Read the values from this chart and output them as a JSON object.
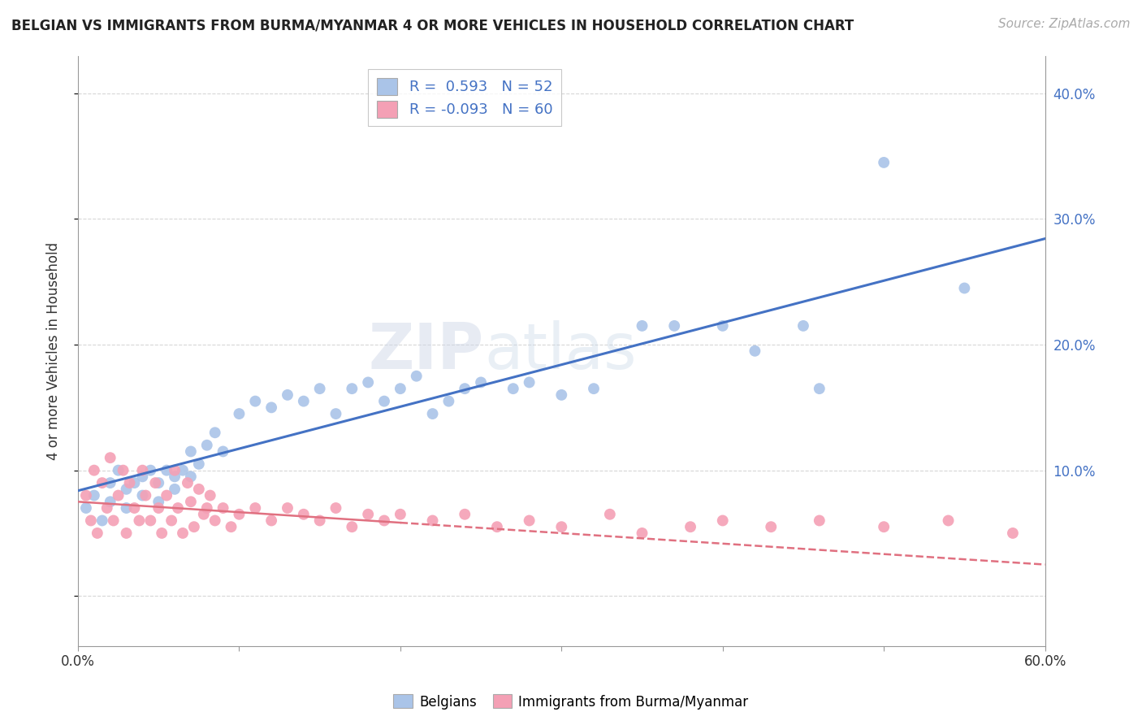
{
  "title": "BELGIAN VS IMMIGRANTS FROM BURMA/MYANMAR 4 OR MORE VEHICLES IN HOUSEHOLD CORRELATION CHART",
  "source": "Source: ZipAtlas.com",
  "ylabel": "4 or more Vehicles in Household",
  "xlim": [
    0.0,
    0.6
  ],
  "ylim": [
    -0.04,
    0.43
  ],
  "yticks": [
    0.0,
    0.1,
    0.2,
    0.3,
    0.4
  ],
  "ytick_labels_right": [
    "",
    "10.0%",
    "20.0%",
    "30.0%",
    "40.0%"
  ],
  "xticks": [
    0.0,
    0.1,
    0.2,
    0.3,
    0.4,
    0.5,
    0.6
  ],
  "xtick_labels": [
    "0.0%",
    "",
    "",
    "",
    "",
    "",
    "60.0%"
  ],
  "belgians_R": 0.593,
  "belgians_N": 52,
  "burma_R": -0.093,
  "burma_N": 60,
  "belgian_color": "#aac4e8",
  "burma_color": "#f4a0b5",
  "belgian_line_color": "#4472c4",
  "burma_line_color": "#e07080",
  "background_color": "#ffffff",
  "grid_color": "#cccccc",
  "belgian_scatter_x": [
    0.005,
    0.01,
    0.015,
    0.02,
    0.02,
    0.025,
    0.03,
    0.03,
    0.035,
    0.04,
    0.04,
    0.045,
    0.05,
    0.05,
    0.055,
    0.06,
    0.06,
    0.065,
    0.07,
    0.07,
    0.075,
    0.08,
    0.085,
    0.09,
    0.1,
    0.11,
    0.12,
    0.13,
    0.14,
    0.15,
    0.16,
    0.17,
    0.18,
    0.19,
    0.2,
    0.21,
    0.22,
    0.23,
    0.24,
    0.25,
    0.27,
    0.28,
    0.3,
    0.32,
    0.35,
    0.37,
    0.4,
    0.42,
    0.45,
    0.46,
    0.5,
    0.55
  ],
  "belgian_scatter_y": [
    0.07,
    0.08,
    0.06,
    0.09,
    0.075,
    0.1,
    0.085,
    0.07,
    0.09,
    0.095,
    0.08,
    0.1,
    0.09,
    0.075,
    0.1,
    0.095,
    0.085,
    0.1,
    0.115,
    0.095,
    0.105,
    0.12,
    0.13,
    0.115,
    0.145,
    0.155,
    0.15,
    0.16,
    0.155,
    0.165,
    0.145,
    0.165,
    0.17,
    0.155,
    0.165,
    0.175,
    0.145,
    0.155,
    0.165,
    0.17,
    0.165,
    0.17,
    0.16,
    0.165,
    0.215,
    0.215,
    0.215,
    0.195,
    0.215,
    0.165,
    0.345,
    0.245
  ],
  "burma_scatter_x": [
    0.005,
    0.008,
    0.01,
    0.012,
    0.015,
    0.018,
    0.02,
    0.022,
    0.025,
    0.028,
    0.03,
    0.032,
    0.035,
    0.038,
    0.04,
    0.042,
    0.045,
    0.048,
    0.05,
    0.052,
    0.055,
    0.058,
    0.06,
    0.062,
    0.065,
    0.068,
    0.07,
    0.072,
    0.075,
    0.078,
    0.08,
    0.082,
    0.085,
    0.09,
    0.095,
    0.1,
    0.11,
    0.12,
    0.13,
    0.14,
    0.15,
    0.16,
    0.17,
    0.18,
    0.19,
    0.2,
    0.22,
    0.24,
    0.26,
    0.28,
    0.3,
    0.33,
    0.35,
    0.38,
    0.4,
    0.43,
    0.46,
    0.5,
    0.54,
    0.58
  ],
  "burma_scatter_y": [
    0.08,
    0.06,
    0.1,
    0.05,
    0.09,
    0.07,
    0.11,
    0.06,
    0.08,
    0.1,
    0.05,
    0.09,
    0.07,
    0.06,
    0.1,
    0.08,
    0.06,
    0.09,
    0.07,
    0.05,
    0.08,
    0.06,
    0.1,
    0.07,
    0.05,
    0.09,
    0.075,
    0.055,
    0.085,
    0.065,
    0.07,
    0.08,
    0.06,
    0.07,
    0.055,
    0.065,
    0.07,
    0.06,
    0.07,
    0.065,
    0.06,
    0.07,
    0.055,
    0.065,
    0.06,
    0.065,
    0.06,
    0.065,
    0.055,
    0.06,
    0.055,
    0.065,
    0.05,
    0.055,
    0.06,
    0.055,
    0.06,
    0.055,
    0.06,
    0.05
  ],
  "burma_line_start_x": 0.0,
  "burma_line_start_y": 0.075,
  "burma_line_solid_end_x": 0.2,
  "burma_line_dashed_end_x": 0.6,
  "burma_line_end_y": 0.025
}
